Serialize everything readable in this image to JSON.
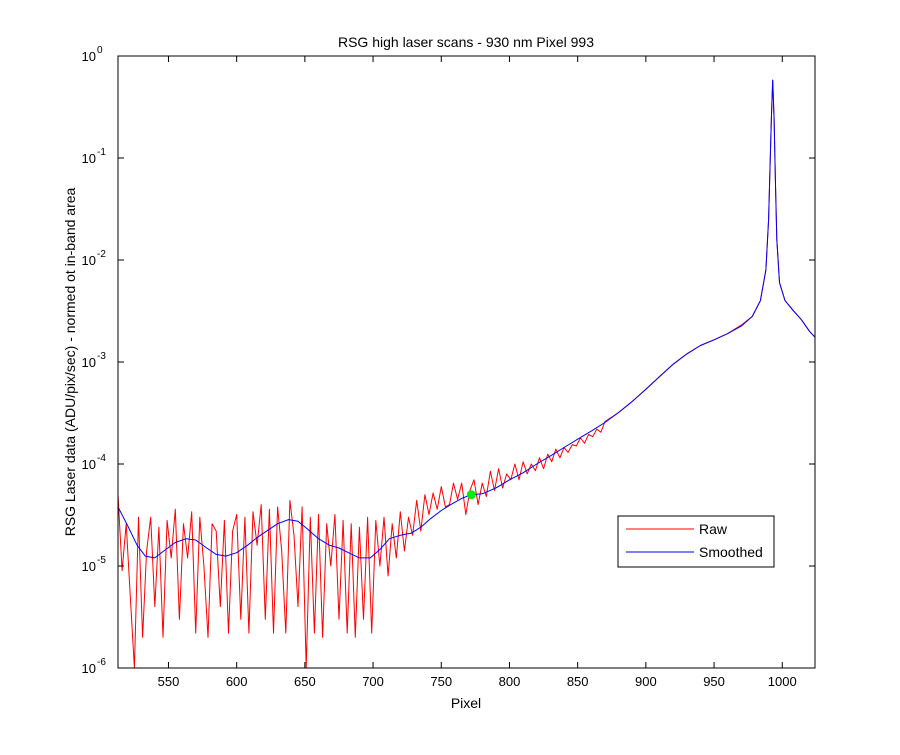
{
  "chart_data": {
    "type": "line",
    "title": "RSG high laser scans  - 930 nm    Pixel 993",
    "xlabel": "Pixel",
    "ylabel": "RSG Laser data (ADU/pix/sec) - normed ot in-band area",
    "xlim": [
      513,
      1024
    ],
    "ylim": [
      1e-06,
      1
    ],
    "yscale": "log",
    "grid": false,
    "legend_position": "lower-right",
    "x_ticks": [
      550,
      600,
      650,
      700,
      750,
      800,
      850,
      900,
      950,
      1000
    ],
    "y_ticks": [
      {
        "value": 1e-06,
        "exponent": "-6"
      },
      {
        "value": 1e-05,
        "exponent": "-5"
      },
      {
        "value": 0.0001,
        "exponent": "-4"
      },
      {
        "value": 0.001,
        "exponent": "-3"
      },
      {
        "value": 0.01,
        "exponent": "-2"
      },
      {
        "value": 0.1,
        "exponent": "-1"
      },
      {
        "value": 1,
        "exponent": "0"
      }
    ],
    "tick_base": "10",
    "series": [
      {
        "name": "Smoothed",
        "color": "#0000ff",
        "x": [
          513,
          520,
          527,
          533,
          540,
          548,
          555,
          563,
          570,
          578,
          585,
          592,
          600,
          608,
          615,
          622,
          630,
          638,
          645,
          652,
          660,
          668,
          675,
          682,
          690,
          698,
          705,
          712,
          720,
          728,
          735,
          742,
          750,
          757,
          765,
          772,
          780,
          790,
          800,
          810,
          820,
          830,
          840,
          850,
          860,
          870,
          880,
          890,
          900,
          910,
          920,
          930,
          940,
          950,
          960,
          970,
          978,
          984,
          988,
          990,
          991,
          992,
          993,
          994,
          995,
          996,
          998,
          1002,
          1008,
          1014,
          1020,
          1024
        ],
        "y": [
          3.8e-05,
          2.5e-05,
          1.6e-05,
          1.25e-05,
          1.2e-05,
          1.45e-05,
          1.7e-05,
          1.85e-05,
          1.8e-05,
          1.5e-05,
          1.3e-05,
          1.25e-05,
          1.35e-05,
          1.6e-05,
          1.9e-05,
          2.2e-05,
          2.6e-05,
          2.85e-05,
          2.75e-05,
          2.3e-05,
          1.85e-05,
          1.6e-05,
          1.5e-05,
          1.35e-05,
          1.2e-05,
          1.2e-05,
          1.45e-05,
          1.85e-05,
          2e-05,
          2.1e-05,
          2.4e-05,
          2.9e-05,
          3.5e-05,
          4e-05,
          4.6e-05,
          5e-05,
          5.1e-05,
          5.8e-05,
          7e-05,
          8.2e-05,
          0.0001,
          0.00012,
          0.000145,
          0.000175,
          0.00021,
          0.000255,
          0.00032,
          0.00041,
          0.00054,
          0.00072,
          0.00095,
          0.0012,
          0.00145,
          0.00165,
          0.0019,
          0.00225,
          0.0028,
          0.004,
          0.008,
          0.025,
          0.08,
          0.25,
          0.58,
          0.24,
          0.06,
          0.016,
          0.006,
          0.004,
          0.0032,
          0.0026,
          0.002,
          0.00175
        ]
      },
      {
        "name": "Raw",
        "color": "#ff0000",
        "x": [
          513,
          516,
          519,
          522,
          525,
          528,
          531,
          534,
          537,
          540,
          543,
          546,
          549,
          552,
          555,
          558,
          561,
          564,
          567,
          570,
          573,
          576,
          579,
          582,
          585,
          588,
          591,
          594,
          597,
          600,
          603,
          606,
          609,
          612,
          615,
          618,
          621,
          624,
          627,
          630,
          633,
          636,
          639,
          642,
          645,
          648,
          651,
          654,
          657,
          660,
          663,
          666,
          669,
          672,
          675,
          678,
          681,
          684,
          687,
          690,
          693,
          696,
          699,
          702,
          705,
          708,
          711,
          714,
          717,
          720,
          723,
          726,
          729,
          732,
          735,
          738,
          741,
          744,
          747,
          750,
          753,
          756,
          759,
          762,
          765,
          768,
          771,
          774,
          777,
          780,
          783,
          786,
          789,
          792,
          795,
          798,
          801,
          804,
          807,
          810,
          813,
          816,
          819,
          822,
          825,
          828,
          831,
          834,
          837,
          840,
          843,
          846,
          849,
          852,
          855,
          858,
          861,
          864,
          867,
          870,
          880,
          890,
          900,
          910,
          920,
          930,
          940,
          950,
          960,
          970,
          978,
          984,
          988,
          990,
          991,
          992,
          993,
          994,
          995,
          996,
          998,
          1002,
          1008,
          1014,
          1020,
          1024
        ],
        "y": [
          5e-05,
          9e-06,
          2.6e-05,
          5e-06,
          1e-06,
          3e-05,
          2e-06,
          1.4e-05,
          3e-05,
          4e-06,
          2.4e-05,
          2e-06,
          2.8e-05,
          1.2e-05,
          3.6e-05,
          3e-06,
          2.6e-05,
          1.2e-05,
          3.4e-05,
          2.2e-06,
          3e-05,
          1e-05,
          2e-06,
          2.6e-05,
          2.2e-05,
          4e-06,
          2.8e-05,
          2.2e-06,
          2.2e-05,
          3.2e-05,
          3e-06,
          3e-05,
          2.2e-06,
          3.4e-05,
          1.6e-05,
          4e-05,
          3e-06,
          3.6e-05,
          2.2e-06,
          3.8e-05,
          1.4e-05,
          2.2e-06,
          4.4e-05,
          2e-05,
          4e-06,
          3.8e-05,
          1e-06,
          3e-05,
          2.2e-06,
          3.2e-05,
          2e-06,
          2.6e-05,
          1e-05,
          3.2e-05,
          3e-06,
          2.8e-05,
          2.2e-06,
          2.6e-05,
          2e-06,
          2.4e-05,
          3e-06,
          3e-05,
          2.2e-06,
          2.8e-05,
          1e-05,
          3e-05,
          8e-06,
          2.6e-05,
          1.2e-05,
          3.4e-05,
          1.4e-05,
          3e-05,
          2e-05,
          4.4e-05,
          2.2e-05,
          5e-05,
          3.2e-05,
          5.2e-05,
          3.6e-05,
          6e-05,
          3.8e-05,
          4e-05,
          6.5e-05,
          4.5e-05,
          6.5e-05,
          3.2e-05,
          5.5e-05,
          7e-05,
          4e-05,
          6.5e-05,
          4.8e-05,
          8.5e-05,
          5.5e-05,
          9e-05,
          5.8e-05,
          8e-05,
          7e-05,
          0.0001,
          7e-05,
          0.000105,
          8e-05,
          0.0001,
          8.6e-05,
          0.000115,
          9e-05,
          0.000125,
          0.000105,
          0.00014,
          0.000115,
          0.000145,
          0.00013,
          0.000155,
          0.00015,
          0.00018,
          0.00016,
          0.000195,
          0.000185,
          0.00022,
          0.000205,
          0.00026,
          0.00032,
          0.00041,
          0.00054,
          0.00072,
          0.00095,
          0.0012,
          0.00145,
          0.00165,
          0.0019,
          0.0023,
          0.0028,
          0.004,
          0.008,
          0.025,
          0.08,
          0.25,
          0.58,
          0.24,
          0.06,
          0.016,
          0.006,
          0.004,
          0.0032,
          0.0026,
          0.002,
          0.00175
        ]
      }
    ],
    "marker": {
      "x": 772,
      "y": 5e-05,
      "color": "#00ee00"
    }
  }
}
